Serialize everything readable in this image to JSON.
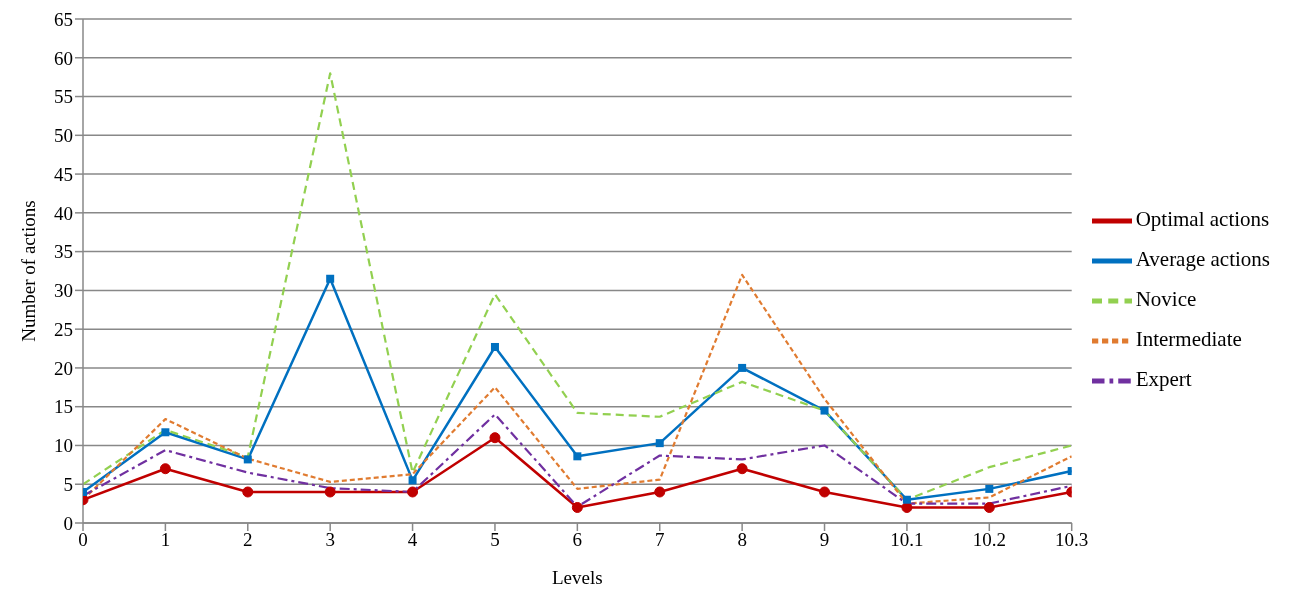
{
  "chart_data": {
    "type": "line",
    "xlabel": "Levels",
    "ylabel": "Number of actions",
    "categories": [
      "0",
      "1",
      "2",
      "3",
      "4",
      "5",
      "6",
      "7",
      "8",
      "9",
      "10.1",
      "10.2",
      "10.3"
    ],
    "series": [
      {
        "name": "Optimal actions",
        "color": "#c00000",
        "marker": "circle",
        "line_style": "solid",
        "values": [
          3,
          7,
          4,
          4,
          4,
          11,
          2,
          4,
          7,
          4,
          2,
          2,
          4
        ]
      },
      {
        "name": "Average actions",
        "color": "#0070c0",
        "marker": "square",
        "line_style": "solid",
        "values": [
          4,
          11.7,
          8.2,
          31.5,
          5.5,
          22.7,
          8.6,
          10.3,
          20,
          14.5,
          3,
          4.4,
          6.7
        ]
      },
      {
        "name": "Novice",
        "color": "#92d050",
        "marker": "none",
        "line_style": "dashed",
        "values": [
          5,
          12,
          8.5,
          58,
          6.5,
          29.5,
          14.2,
          13.7,
          18.2,
          14.5,
          3,
          7.2,
          10
        ]
      },
      {
        "name": "Intermediate",
        "color": "#e07b30",
        "marker": "none",
        "line_style": "dotted",
        "values": [
          3,
          13.4,
          8.3,
          5.3,
          6.3,
          17.5,
          4.4,
          5.6,
          32,
          16,
          2.5,
          3.3,
          8.6
        ]
      },
      {
        "name": "Expert",
        "color": "#7030a0",
        "marker": "none",
        "line_style": "dashdot",
        "values": [
          3.5,
          9.4,
          6.5,
          4.5,
          4,
          14,
          2.1,
          8.7,
          8.2,
          10,
          2.5,
          2.5,
          4.8
        ]
      }
    ],
    "ylim": [
      0,
      65
    ],
    "yticks": [
      0,
      5,
      10,
      15,
      20,
      25,
      30,
      35,
      40,
      45,
      50,
      55,
      60,
      65
    ],
    "grid": "y",
    "legend": "right"
  }
}
